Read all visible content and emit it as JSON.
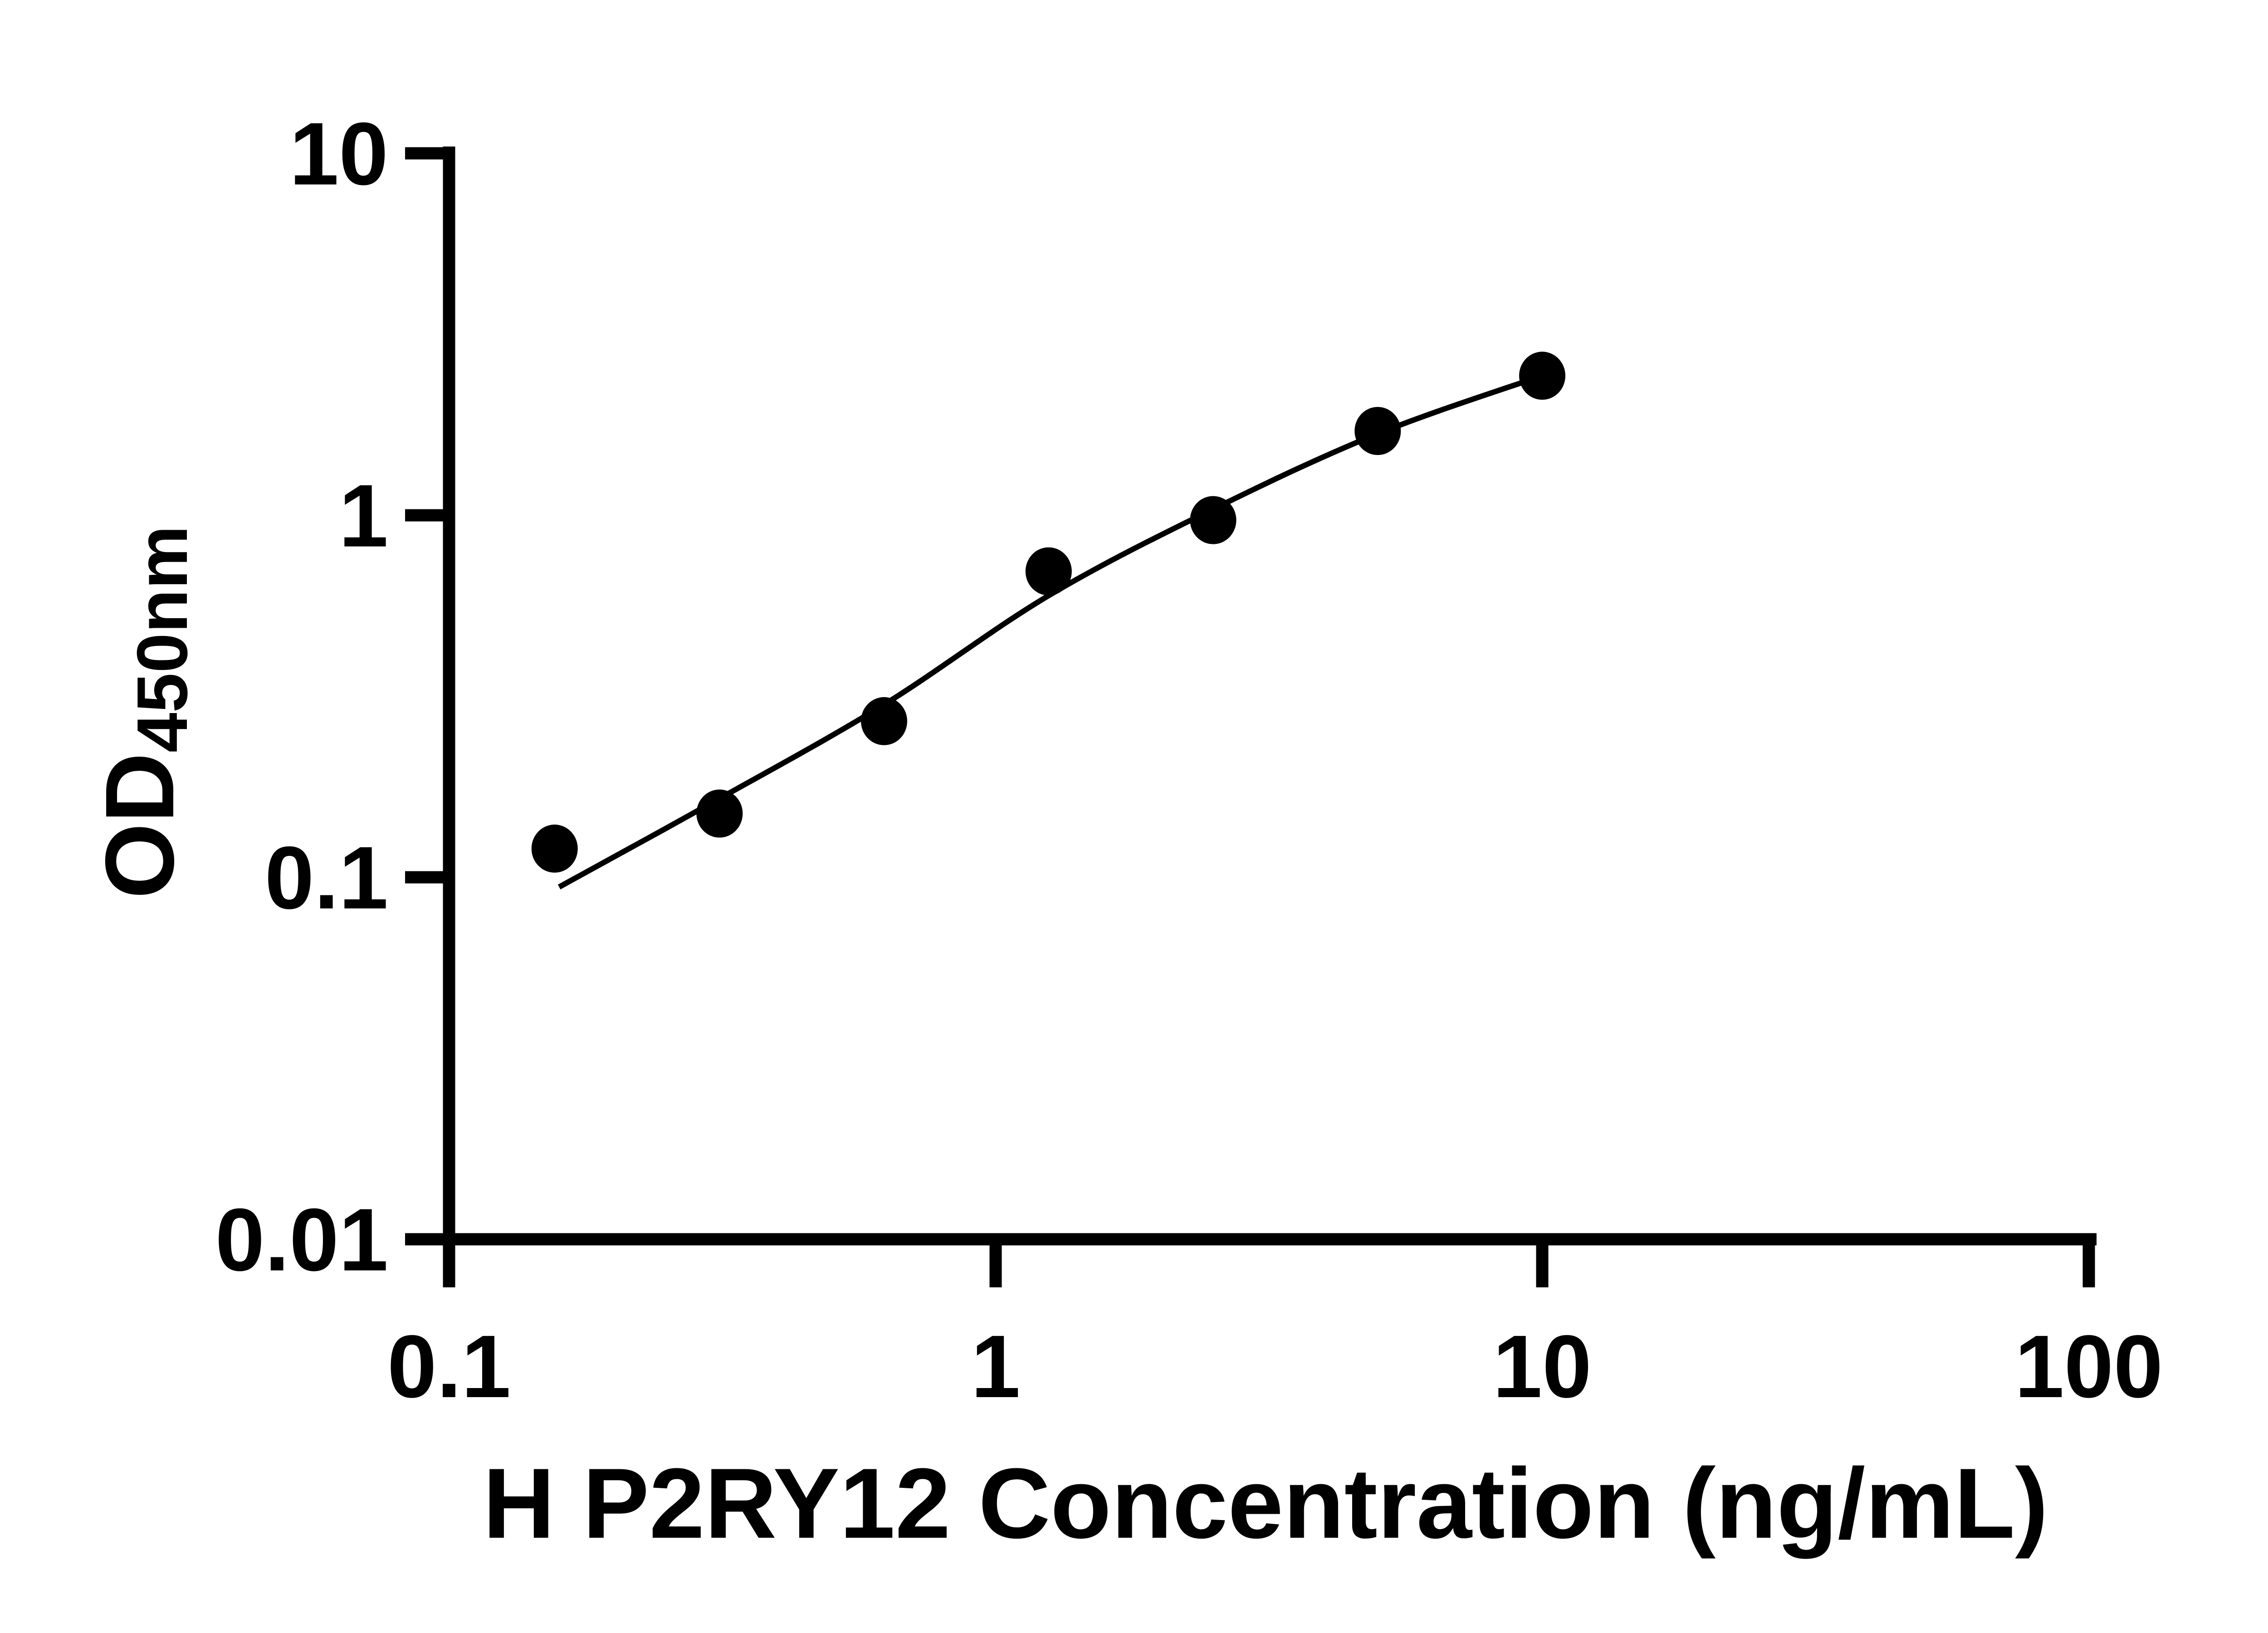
{
  "figure": {
    "background_color": "#ffffff",
    "type": "elisa-standard-curve"
  },
  "chart_data": {
    "type": "scatter",
    "title": "",
    "xlabel": "H P2RY12 Concentration (ng/mL)",
    "ylabel_main": "OD",
    "ylabel_sub": "450nm",
    "x_scale": "log",
    "y_scale": "log",
    "xlim": [
      0.1,
      100
    ],
    "ylim": [
      0.01,
      10
    ],
    "x_ticks": [
      0.1,
      1,
      10,
      100
    ],
    "x_tick_labels": [
      "0.1",
      "1",
      "10",
      "100"
    ],
    "y_ticks": [
      10,
      1,
      0.1,
      0.01
    ],
    "y_tick_labels": [
      "10",
      "1",
      "0.1",
      "0.01"
    ],
    "grid": false,
    "legend": null,
    "axis_color": "#000000",
    "marker_color": "#000000",
    "curve_color": "#000000",
    "series": [
      {
        "name": "standard-points",
        "type": "scatter",
        "marker": "filled-circle",
        "x": [
          0.156,
          0.3125,
          0.625,
          1.25,
          2.5,
          5,
          10
        ],
        "y": [
          0.12,
          0.15,
          0.27,
          0.7,
          0.97,
          1.71,
          2.43
        ]
      },
      {
        "name": "fit-curve",
        "type": "line",
        "x": [
          0.159,
          0.3125,
          0.625,
          1.25,
          2.5,
          5,
          10
        ],
        "y": [
          0.094,
          0.165,
          0.3,
          0.6,
          1.04,
          1.68,
          2.43
        ]
      }
    ]
  }
}
